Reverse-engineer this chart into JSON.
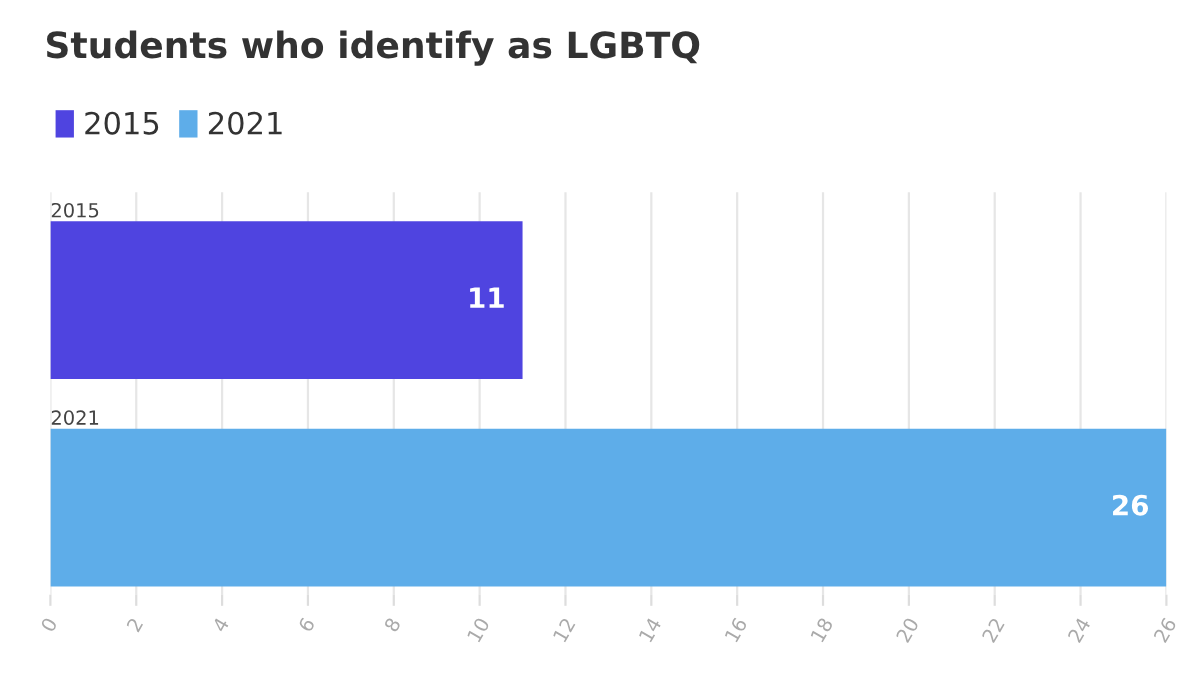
{
  "chart_data": {
    "type": "bar",
    "orientation": "horizontal",
    "title": "Students who identify as LGBTQ",
    "categories": [
      "2015",
      "2021"
    ],
    "series": [
      {
        "name": "2015",
        "color": "#4f44e0",
        "values": [
          11,
          null
        ]
      },
      {
        "name": "2021",
        "color": "#5eade9",
        "values": [
          null,
          26
        ]
      }
    ],
    "xlim": [
      0,
      26
    ],
    "xticks": [
      0,
      2,
      4,
      6,
      8,
      10,
      12,
      14,
      16,
      18,
      20,
      22,
      24,
      26
    ],
    "grid": "x",
    "legend": "top left",
    "data_labels": true
  }
}
